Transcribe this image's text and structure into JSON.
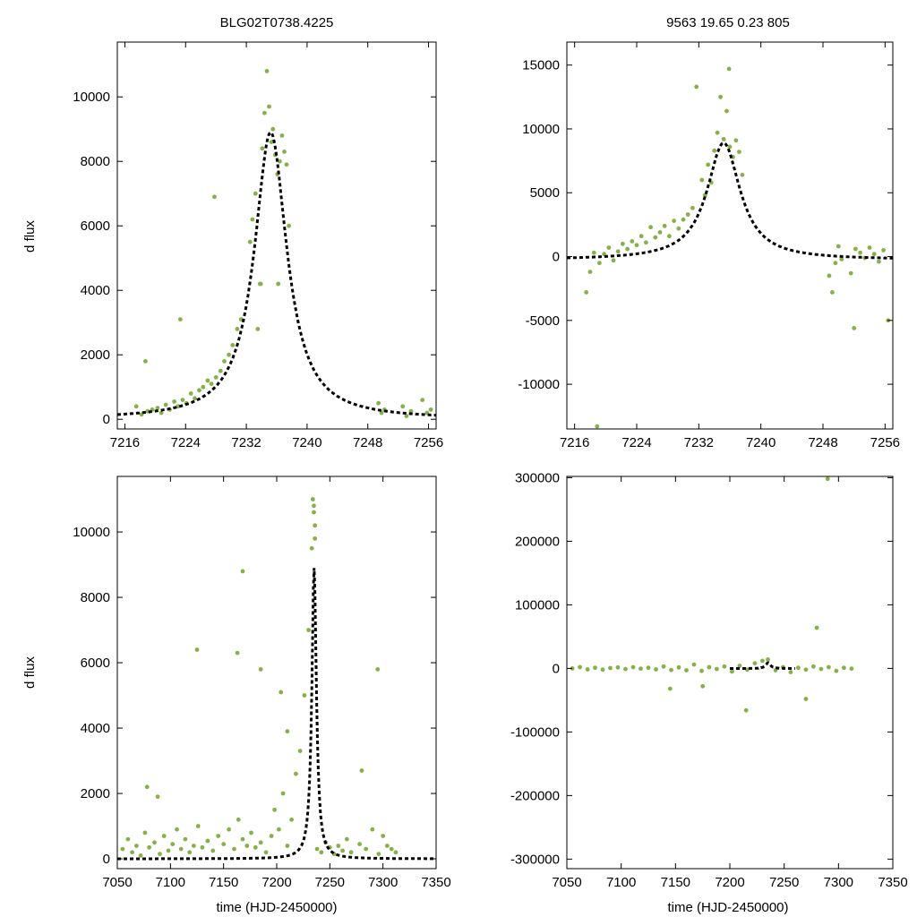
{
  "figure": {
    "top_left_title": "BLG02T0738.4225",
    "top_right_title": "9563  19.65  0.23  805",
    "ylabel": "d flux",
    "xlabel": "time (HJD-2450000)"
  },
  "colors": {
    "points": "#86b04a",
    "model": "#000000",
    "axes": "#000000"
  },
  "chart_data": [
    {
      "name": "top-left",
      "type": "scatter",
      "title": "BLG02T0738.4225",
      "xlabel": "",
      "ylabel": "d flux",
      "xlim": [
        7215,
        7257
      ],
      "ylim": [
        -300,
        11700
      ],
      "xticks": [
        7216,
        7224,
        7232,
        7240,
        7248,
        7256
      ],
      "yticks": [
        0,
        2000,
        4000,
        6000,
        8000,
        10000
      ],
      "xtick_labels": [
        "7216",
        "7224",
        "7232",
        "7240",
        "7248",
        "7256"
      ],
      "ytick_labels": [
        "0",
        "2000",
        "4000",
        "6000",
        "8000",
        "10000"
      ],
      "model": {
        "t0": 7235.2,
        "peak": 8900,
        "tE": 2.6,
        "baseline": 0,
        "tmin": 7215,
        "tmax": 7257
      },
      "series": [
        {
          "name": "observed",
          "x": [
            7217.5,
            7218.2,
            7219.0,
            7219.6,
            7220.3,
            7220.8,
            7221.4,
            7221.9,
            7222.5,
            7223.0,
            7223.6,
            7224.1,
            7224.7,
            7225.2,
            7225.8,
            7226.3,
            7226.9,
            7227.4,
            7228.0,
            7228.6,
            7229.1,
            7229.7,
            7230.2,
            7230.8,
            7231.3,
            7232.5,
            7232.8,
            7233.2,
            7233.5,
            7233.8,
            7234.1,
            7234.4,
            7234.7,
            7235.0,
            7235.3,
            7235.5,
            7235.8,
            7236.1,
            7236.4,
            7236.7,
            7237.0,
            7237.3,
            7237.6,
            7249.4,
            7249.8,
            7250.2,
            7252.6,
            7253.1,
            7253.7,
            7255.2,
            7255.8,
            7256.3,
            7218.7,
            7223.3,
            7227.8,
            7233.9,
            7236.2
          ],
          "y": [
            400,
            150,
            250,
            300,
            350,
            200,
            450,
            300,
            550,
            400,
            600,
            500,
            800,
            650,
            900,
            1000,
            1200,
            1100,
            1300,
            1500,
            1800,
            2000,
            2300,
            2800,
            3100,
            5500,
            6200,
            7000,
            2800,
            4200,
            8400,
            9500,
            10800,
            9700,
            8600,
            9000,
            8200,
            7600,
            8000,
            8800,
            8300,
            7900,
            6000,
            500,
            200,
            300,
            400,
            100,
            250,
            600,
            200,
            300,
            1800,
            3100,
            6900,
            4200,
            4200
          ]
        }
      ]
    },
    {
      "name": "top-right",
      "type": "scatter",
      "title": "9563  19.65  0.23  805",
      "xlabel": "",
      "ylabel": "",
      "xlim": [
        7215,
        7257
      ],
      "ylim": [
        -13500,
        16800
      ],
      "xticks": [
        7216,
        7224,
        7232,
        7240,
        7248,
        7256
      ],
      "yticks": [
        -10000,
        -5000,
        0,
        5000,
        10000,
        15000
      ],
      "xtick_labels": [
        "7216",
        "7224",
        "7232",
        "7240",
        "7248",
        "7256"
      ],
      "ytick_labels": [
        "-10000",
        "-5000",
        "0",
        "5000",
        "10000",
        "15000"
      ],
      "model": {
        "t0": 7235.2,
        "peak": 8900,
        "tE": 2.6,
        "baseline": -250,
        "tmin": 7215,
        "tmax": 7257
      },
      "series": [
        {
          "name": "observed",
          "x": [
            7217.5,
            7218.0,
            7218.5,
            7219.2,
            7219.8,
            7220.4,
            7221.0,
            7221.6,
            7222.2,
            7222.8,
            7223.4,
            7224.0,
            7224.6,
            7225.2,
            7225.8,
            7226.4,
            7227.0,
            7227.6,
            7228.2,
            7228.8,
            7229.4,
            7230.0,
            7230.6,
            7231.2,
            7232.4,
            7232.8,
            7233.2,
            7233.6,
            7234.0,
            7234.4,
            7234.8,
            7235.2,
            7235.6,
            7236.0,
            7236.4,
            7236.8,
            7237.2,
            7237.6,
            7248.8,
            7249.2,
            7249.6,
            7250.0,
            7250.4,
            7251.6,
            7252.2,
            7252.8,
            7253.4,
            7254.0,
            7254.6,
            7255.2,
            7255.8,
            7256.4,
            7231.7,
            7235.9,
            7218.9,
            7252.0
          ],
          "y": [
            -2800,
            -1200,
            300,
            -500,
            200,
            700,
            -300,
            400,
            1000,
            600,
            1200,
            900,
            1600,
            1100,
            2300,
            1500,
            1900,
            2400,
            1600,
            2800,
            2200,
            2900,
            3300,
            3800,
            6000,
            4800,
            7200,
            5800,
            8300,
            9700,
            12500,
            9200,
            11400,
            8600,
            7800,
            9100,
            8200,
            6400,
            -1500,
            -2800,
            -500,
            800,
            -200,
            -1300,
            600,
            300,
            -100,
            700,
            200,
            -400,
            500,
            -5000,
            13300,
            14700,
            -13300,
            -5600
          ]
        }
      ]
    },
    {
      "name": "bottom-left",
      "type": "scatter",
      "title": "",
      "xlabel": "time (HJD-2450000)",
      "ylabel": "d flux",
      "xlim": [
        7050,
        7350
      ],
      "ylim": [
        -300,
        11700
      ],
      "xticks": [
        7050,
        7100,
        7150,
        7200,
        7250,
        7300,
        7350
      ],
      "yticks": [
        0,
        2000,
        4000,
        6000,
        8000,
        10000
      ],
      "xtick_labels": [
        "7050",
        "7100",
        "7150",
        "7200",
        "7250",
        "7300",
        "7350"
      ],
      "ytick_labels": [
        "0",
        "2000",
        "4000",
        "6000",
        "8000",
        "10000"
      ],
      "model": {
        "t0": 7235.2,
        "peak": 8900,
        "tE": 2.6,
        "baseline": 0,
        "tmin": 7050,
        "tmax": 7350
      },
      "series": [
        {
          "name": "observed",
          "x": [
            7055,
            7060,
            7064,
            7068,
            7072,
            7076,
            7080,
            7085,
            7090,
            7094,
            7098,
            7102,
            7106,
            7110,
            7114,
            7118,
            7122,
            7126,
            7130,
            7135,
            7140,
            7145,
            7150,
            7155,
            7160,
            7164,
            7168,
            7172,
            7176,
            7180,
            7185,
            7190,
            7195,
            7198,
            7202,
            7206,
            7210,
            7214,
            7218,
            7222,
            7226,
            7230,
            7233,
            7235,
            7236,
            7238,
            7242,
            7246,
            7250,
            7254,
            7258,
            7262,
            7266,
            7270,
            7278,
            7284,
            7290,
            7296,
            7300,
            7304,
            7308,
            7312,
            7078,
            7088,
            7125,
            7163,
            7168,
            7185,
            7204,
            7210,
            7295,
            7280,
            7234,
            7235,
            7236
          ],
          "y": [
            300,
            600,
            200,
            400,
            100,
            800,
            350,
            500,
            150,
            700,
            250,
            450,
            900,
            300,
            600,
            200,
            400,
            1000,
            350,
            550,
            250,
            700,
            450,
            900,
            300,
            1200,
            600,
            400,
            800,
            350,
            500,
            200,
            700,
            1500,
            900,
            2000,
            400,
            1200,
            2600,
            3300,
            5000,
            7000,
            9500,
            10800,
            9800,
            300,
            200,
            500,
            350,
            150,
            400,
            250,
            600,
            200,
            450,
            300,
            900,
            150,
            700,
            400,
            300,
            200,
            2200,
            1900,
            6400,
            6300,
            8800,
            5800,
            5100,
            3900,
            5800,
            2700,
            11000,
            10600,
            10200
          ]
        }
      ]
    },
    {
      "name": "bottom-right",
      "type": "scatter",
      "title": "",
      "xlabel": "time (HJD-2450000)",
      "ylabel": "",
      "xlim": [
        7050,
        7350
      ],
      "ylim": [
        -315000,
        302000
      ],
      "xticks": [
        7050,
        7100,
        7150,
        7200,
        7250,
        7300,
        7350
      ],
      "yticks": [
        -300000,
        -200000,
        -100000,
        0,
        100000,
        200000,
        300000
      ],
      "xtick_labels": [
        "7050",
        "7100",
        "7150",
        "7200",
        "7250",
        "7300",
        "7350"
      ],
      "ytick_labels": [
        "-300000",
        "-200000",
        "-100000",
        "0",
        "100000",
        "200000",
        "300000"
      ],
      "model": {
        "t0": 7235.2,
        "peak": 8900,
        "tE": 2.6,
        "baseline": -250,
        "tmin": 7200,
        "tmax": 7260
      },
      "series": [
        {
          "name": "observed",
          "x": [
            7055,
            7062,
            7069,
            7076,
            7083,
            7090,
            7097,
            7104,
            7111,
            7118,
            7125,
            7132,
            7139,
            7146,
            7153,
            7160,
            7167,
            7174,
            7181,
            7188,
            7195,
            7202,
            7209,
            7216,
            7223,
            7230,
            7235,
            7242,
            7249,
            7256,
            7263,
            7270,
            7277,
            7284,
            7291,
            7298,
            7305,
            7312,
            7145,
            7175,
            7215,
            7270,
            7290,
            7280
          ],
          "y": [
            0,
            2000,
            -1500,
            1000,
            -2000,
            500,
            1500,
            -1000,
            2000,
            -500,
            1000,
            -1500,
            3000,
            -2500,
            1500,
            -3000,
            6000,
            -4000,
            2000,
            -1000,
            3000,
            -5000,
            4000,
            -2000,
            8000,
            12000,
            14000,
            -3000,
            2000,
            -6000,
            1000,
            -2000,
            3000,
            -1000,
            2000,
            -4000,
            1000,
            -500,
            -32000,
            -28000,
            -66000,
            -48000,
            298000,
            64000
          ]
        }
      ]
    }
  ]
}
